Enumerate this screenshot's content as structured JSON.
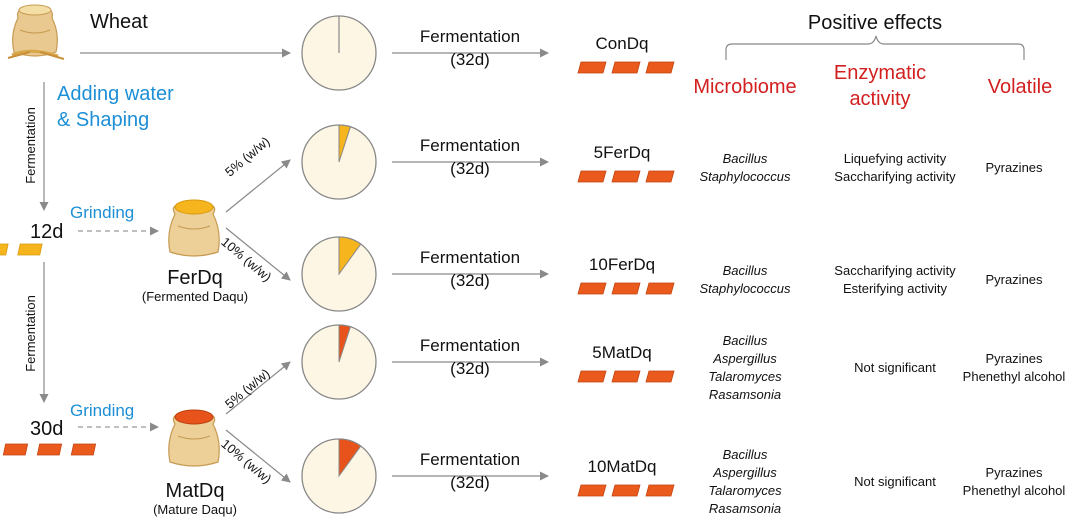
{
  "raw_material": "Wheat",
  "step_adding": [
    "Adding water",
    "& Shaping"
  ],
  "vertical_fermentation": "Fermentation",
  "grinding": "Grinding",
  "age_12": "12d",
  "age_30": "30d",
  "ferdq": {
    "name": "FerDq",
    "desc": "(Fermented Daqu)"
  },
  "matdq": {
    "name": "MatDq",
    "desc": "(Mature Daqu)"
  },
  "ratio_5": "5% (w/w)",
  "ratio_10": "10% (w/w)",
  "fermentation_label": "Fermentation",
  "fermentation_days": "(32d)",
  "positive_effects": "Positive effects",
  "col_microbiome": "Microbiome",
  "col_enzymatic": [
    "Enzymatic",
    "activity"
  ],
  "col_volatile": "Volatile",
  "colors": {
    "wheat_sack": "#e6c489",
    "ferdq_fill": "#f6b51c",
    "matdq_fill": "#e8531b",
    "pie_bg": "#fdf6e4",
    "block": "#ea5a1c",
    "block_yellow": "#f6b51c",
    "blue_text": "#1c8fd6",
    "red_text": "#d21f1f"
  },
  "rows": [
    {
      "product": "ConDq",
      "pie_fraction": 0,
      "pie_source": "none",
      "microbiome": [],
      "enzymatic": [],
      "volatile": []
    },
    {
      "product": "5FerDq",
      "pie_fraction": 0.05,
      "pie_source": "ferdq",
      "microbiome": [
        "Bacillus",
        "Staphylococcus"
      ],
      "enzymatic": [
        "Liquefying activity",
        "Saccharifying activity"
      ],
      "volatile": [
        "Pyrazines"
      ]
    },
    {
      "product": "10FerDq",
      "pie_fraction": 0.1,
      "pie_source": "ferdq",
      "microbiome": [
        "Bacillus",
        "Staphylococcus"
      ],
      "enzymatic": [
        "Saccharifying activity",
        "Esterifying activity"
      ],
      "volatile": [
        "Pyrazines"
      ]
    },
    {
      "product": "5MatDq",
      "pie_fraction": 0.05,
      "pie_source": "matdq",
      "microbiome": [
        "Bacillus",
        "Aspergillus",
        "Talaromyces",
        "Rasamsonia"
      ],
      "enzymatic": [
        "Not significant"
      ],
      "volatile": [
        "Pyrazines",
        "Phenethyl alcohol"
      ]
    },
    {
      "product": "10MatDq",
      "pie_fraction": 0.1,
      "pie_source": "matdq",
      "microbiome": [
        "Bacillus",
        "Aspergillus",
        "Talaromyces",
        "Rasamsonia"
      ],
      "enzymatic": [
        "Not significant"
      ],
      "volatile": [
        "Pyrazines",
        "Phenethyl alcohol"
      ]
    }
  ]
}
